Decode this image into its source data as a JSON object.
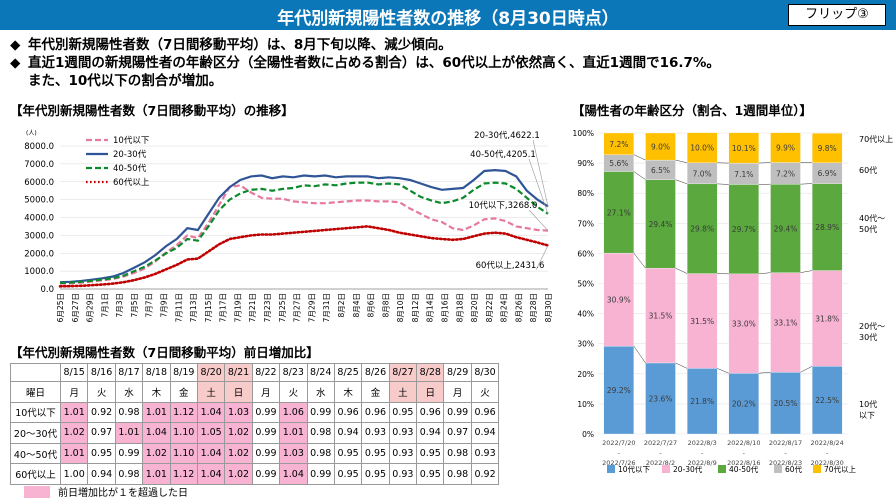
{
  "header": {
    "title": "年代別新規陽性者数の推移（8月30日時点）",
    "flip_label": "フリップ③"
  },
  "bullets": {
    "line1": "年代別新規陽性者数（7日間移動平均）は、8月下旬以降、減少傾向。",
    "line2": "直近1週間の新規陽性者の年齢区分（全陽性者数に占める割合）は、60代以上が依然高く、直近1週間で16.7%。",
    "line3": "また、10代以下の割合が増加。",
    "marker": "◆"
  },
  "sections": {
    "line_title": "【年代別新規陽性者数（7日間移動平均）の推移】",
    "bar_title": "【陽性者の年齢区分（割合、1週間単位）】",
    "table_title": "【年代別新規陽性者数（7日間移動平均）前日増加比】"
  },
  "colors": {
    "title_bar": "#0b76b8",
    "teen": "#5b9bd5",
    "age2030": "#f8b3d3",
    "age4050": "#5aa83e",
    "age60": "#bfbfbf",
    "age70": "#ffc000",
    "highlight": "#f8b3d3"
  },
  "chart_data": [
    {
      "type": "line",
      "title": "",
      "ylabel": "(人)",
      "ylim": [
        0,
        8000
      ],
      "yticks": [
        "0.0",
        "1000.0",
        "2000.0",
        "3000.0",
        "4000.0",
        "5000.0",
        "6000.0",
        "7000.0",
        "8000.0"
      ],
      "x_tick_labels": [
        "6月25日",
        "6月27日",
        "6月29日",
        "7月1日",
        "7月3日",
        "7月5日",
        "7月7日",
        "7月9日",
        "7月11日",
        "7月13日",
        "7月15日",
        "7月17日",
        "7月19日",
        "7月21日",
        "7月23日",
        "7月25日",
        "7月27日",
        "7月29日",
        "7月31日",
        "8月2日",
        "8月4日",
        "8月6日",
        "8月8日",
        "8月10日",
        "8月12日",
        "8月14日",
        "8月16日",
        "8月18日",
        "8月20日",
        "8月22日",
        "8月24日",
        "8月26日",
        "8月28日",
        "8月30日"
      ],
      "legend": [
        "10代以下",
        "20-30代",
        "40-50代",
        "60代以上"
      ],
      "series": [
        {
          "name": "10代以下",
          "style": "dashed",
          "color": "#e6799f",
          "values": [
            300,
            320,
            350,
            420,
            480,
            560,
            700,
            900,
            1150,
            1550,
            2050,
            2450,
            3000,
            2850,
            3700,
            4700,
            5700,
            5800,
            5400,
            5100,
            5050,
            5050,
            4900,
            4850,
            4800,
            4800,
            4850,
            4900,
            4950,
            4950,
            4900,
            4900,
            4850,
            4500,
            4200,
            3900,
            3750,
            3400,
            3300,
            3550,
            3900,
            3950,
            3800,
            3500,
            3400,
            3300,
            3268
          ]
        },
        {
          "name": "20-30代",
          "style": "solid",
          "color": "#2f5597",
          "values": [
            380,
            400,
            450,
            520,
            600,
            700,
            900,
            1200,
            1500,
            1900,
            2400,
            2800,
            3400,
            3300,
            4200,
            5100,
            5700,
            6100,
            6300,
            6350,
            6200,
            6300,
            6250,
            6350,
            6300,
            6350,
            6250,
            6300,
            6300,
            6300,
            6200,
            6250,
            6200,
            6100,
            5900,
            5700,
            5550,
            5600,
            5650,
            6100,
            6600,
            6650,
            6600,
            6300,
            5500,
            5000,
            4622
          ]
        },
        {
          "name": "40-50代",
          "style": "dashed",
          "color": "#0a8a2b",
          "values": [
            340,
            360,
            400,
            460,
            530,
            600,
            750,
            1000,
            1250,
            1600,
            2000,
            2300,
            2800,
            2700,
            3500,
            4400,
            5000,
            5350,
            5550,
            5600,
            5500,
            5600,
            5650,
            5800,
            5750,
            5850,
            5800,
            5900,
            5950,
            5950,
            5850,
            5900,
            5850,
            5500,
            5150,
            4950,
            4800,
            4900,
            5100,
            5550,
            5900,
            5950,
            5900,
            5600,
            5100,
            4600,
            4205
          ]
        },
        {
          "name": "60代以上",
          "style": "dotted",
          "color": "#c00000",
          "values": [
            150,
            160,
            180,
            210,
            250,
            300,
            380,
            500,
            650,
            850,
            1100,
            1350,
            1650,
            1700,
            2100,
            2500,
            2800,
            2900,
            3000,
            3050,
            3050,
            3100,
            3150,
            3200,
            3250,
            3300,
            3350,
            3400,
            3450,
            3500,
            3400,
            3300,
            3150,
            3050,
            2950,
            2850,
            2800,
            2750,
            2800,
            2950,
            3100,
            3150,
            3100,
            2900,
            2750,
            2600,
            2432
          ]
        }
      ],
      "end_labels": [
        "20-30代,4622.1",
        "40-50代,4205.1",
        "10代以下,3268.0",
        "60代以上,2431.6"
      ]
    },
    {
      "type": "bar",
      "stacked": true,
      "title": "",
      "ylim": [
        0,
        100
      ],
      "yticks": [
        "0%",
        "10%",
        "20%",
        "30%",
        "40%",
        "50%",
        "60%",
        "70%",
        "80%",
        "90%",
        "100%"
      ],
      "categories": [
        [
          "2022/7/20",
          "-",
          "2022/7/26"
        ],
        [
          "2022/7/27",
          "-",
          "2022/8/2"
        ],
        [
          "2022/8/3",
          "-",
          "2022/8/9"
        ],
        [
          "2022/8/10",
          "-",
          "2022/8/16"
        ],
        [
          "2022/8/17",
          "-",
          "2022/8/23"
        ],
        [
          "2022/8/24",
          "-",
          "2022/8/30"
        ]
      ],
      "series": [
        {
          "name": "10代以下",
          "values": [
            29.2,
            23.6,
            21.8,
            20.2,
            20.5,
            22.5
          ],
          "labels": [
            "29.2%",
            "23.6%",
            "21.8%",
            "20.2%",
            "20.5%",
            "22.5%"
          ]
        },
        {
          "name": "20-30代",
          "values": [
            30.9,
            31.5,
            31.5,
            33.0,
            33.1,
            31.8
          ],
          "labels": [
            "30.9%",
            "31.5%",
            "31.5%",
            "33.0%",
            "33.1%",
            "31.8%"
          ]
        },
        {
          "name": "40-50代",
          "values": [
            27.1,
            29.4,
            29.8,
            29.7,
            29.4,
            28.9
          ],
          "labels": [
            "27.1%",
            "29.4%",
            "29.8%",
            "29.7%",
            "29.4%",
            "28.9%"
          ]
        },
        {
          "name": "60代",
          "values": [
            5.6,
            6.5,
            7.0,
            7.1,
            7.2,
            6.9
          ],
          "labels": [
            "5.6%",
            "6.5%",
            "7.0%",
            "7.1%",
            "7.2%",
            "6.9%"
          ]
        },
        {
          "name": "70代以上",
          "values": [
            7.2,
            9.0,
            10.0,
            10.1,
            9.9,
            9.8
          ],
          "labels": [
            "7.2%",
            "9.0%",
            "10.0%",
            "10.1%",
            "9.9%",
            "9.8%"
          ]
        }
      ],
      "side_labels": [
        [
          "70代以上"
        ],
        [
          "60代"
        ],
        [
          "40代～",
          "50代"
        ],
        [
          "20代～",
          "30代"
        ],
        [
          "10代",
          "以下"
        ]
      ],
      "legend": [
        "10代以下",
        "20-30代",
        "40-50代",
        "60代",
        "70代以上"
      ]
    },
    {
      "type": "table",
      "dates": [
        "8/15",
        "8/16",
        "8/17",
        "8/18",
        "8/19",
        "8/20",
        "8/21",
        "8/22",
        "8/23",
        "8/24",
        "8/25",
        "8/26",
        "8/27",
        "8/28",
        "8/29",
        "8/30"
      ],
      "weekdays": [
        "月",
        "火",
        "水",
        "木",
        "金",
        "土",
        "日",
        "月",
        "火",
        "水",
        "木",
        "金",
        "土",
        "日",
        "月",
        "火"
      ],
      "weekday_header": "曜日",
      "weekend_columns": [
        5,
        6,
        12,
        13
      ],
      "rows": [
        {
          "label": "10代以下",
          "values": [
            "1.01",
            "0.92",
            "0.98",
            "1.01",
            "1.12",
            "1.04",
            "1.03",
            "0.99",
            "1.06",
            "0.99",
            "0.96",
            "0.96",
            "0.95",
            "0.96",
            "0.99",
            "0.96"
          ]
        },
        {
          "label": "20～30代",
          "values": [
            "1.02",
            "0.97",
            "1.01",
            "1.04",
            "1.10",
            "1.05",
            "1.02",
            "0.99",
            "1.01",
            "0.98",
            "0.94",
            "0.93",
            "0.93",
            "0.94",
            "0.97",
            "0.94"
          ]
        },
        {
          "label": "40～50代",
          "values": [
            "1.01",
            "0.95",
            "0.99",
            "1.02",
            "1.10",
            "1.04",
            "1.02",
            "0.99",
            "1.03",
            "0.98",
            "0.95",
            "0.95",
            "0.93",
            "0.95",
            "0.98",
            "0.93"
          ]
        },
        {
          "label": "60代以上",
          "values": [
            "1.00",
            "0.94",
            "0.98",
            "1.01",
            "1.12",
            "1.04",
            "1.02",
            "0.99",
            "1.04",
            "0.99",
            "0.95",
            "0.95",
            "0.93",
            "0.95",
            "0.98",
            "0.92"
          ]
        }
      ],
      "note": "前日増加比が１を超過した日"
    }
  ]
}
